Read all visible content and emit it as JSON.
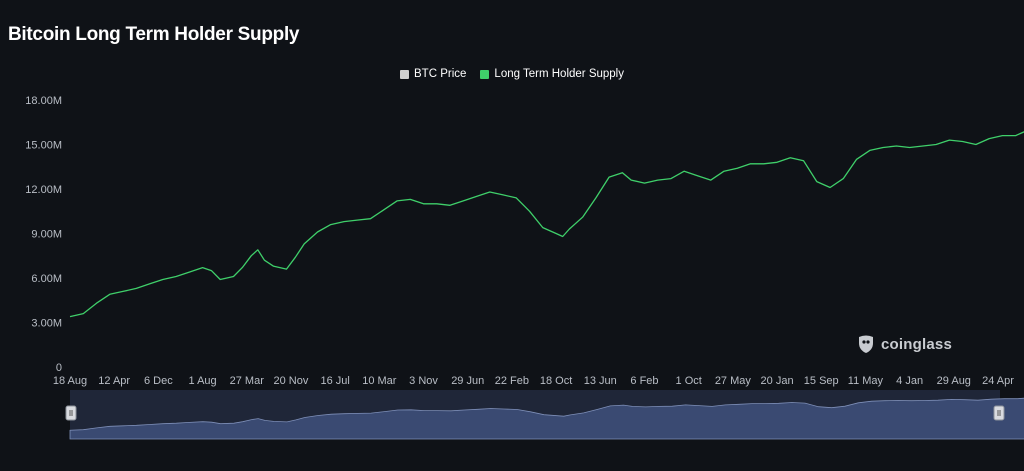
{
  "header": {
    "title": "Bitcoin Long Term Holder Supply"
  },
  "legend": {
    "items": [
      {
        "label": "BTC Price",
        "color": "#d0d0d0"
      },
      {
        "label": "Long Term Holder Supply",
        "color": "#3fcf6a"
      }
    ]
  },
  "watermark": {
    "text": "coinglass",
    "icon": "coinglass-logo-icon"
  },
  "navigator": {
    "left_handle_icon": "pause-handle-icon",
    "right_handle_icon": "pause-handle-icon"
  },
  "chart_data": {
    "type": "line",
    "title": "Bitcoin Long Term Holder Supply",
    "xlabel": "",
    "ylabel": "",
    "ylim": [
      0,
      18000000
    ],
    "y_ticks": [
      {
        "value": 0,
        "label": "0"
      },
      {
        "value": 3000000,
        "label": "3.00M"
      },
      {
        "value": 6000000,
        "label": "6.00M"
      },
      {
        "value": 9000000,
        "label": "9.00M"
      },
      {
        "value": 12000000,
        "label": "12.00M"
      },
      {
        "value": 15000000,
        "label": "15.00M"
      },
      {
        "value": 18000000,
        "label": "18.00M"
      }
    ],
    "x_ticks": [
      "18 Aug",
      "12 Apr",
      "6 Dec",
      "1 Aug",
      "27 Mar",
      "20 Nov",
      "16 Jul",
      "10 Mar",
      "3 Nov",
      "29 Jun",
      "22 Feb",
      "18 Oct",
      "13 Jun",
      "6 Feb",
      "1 Oct",
      "27 May",
      "20 Jan",
      "15 Sep",
      "11 May",
      "4 Jan",
      "29 Aug",
      "24 Apr"
    ],
    "grid": false,
    "legend_position": "top-center",
    "series": [
      {
        "name": "Long Term Holder Supply",
        "color": "#3fcf6a",
        "points": [
          [
            0,
            3400000
          ],
          [
            0.3,
            3600000
          ],
          [
            0.6,
            4300000
          ],
          [
            0.9,
            4900000
          ],
          [
            1.2,
            5100000
          ],
          [
            1.5,
            5300000
          ],
          [
            1.8,
            5600000
          ],
          [
            2.1,
            5900000
          ],
          [
            2.4,
            6100000
          ],
          [
            2.7,
            6400000
          ],
          [
            3.0,
            6700000
          ],
          [
            3.2,
            6500000
          ],
          [
            3.4,
            5900000
          ],
          [
            3.7,
            6100000
          ],
          [
            3.9,
            6700000
          ],
          [
            4.1,
            7500000
          ],
          [
            4.25,
            7900000
          ],
          [
            4.4,
            7200000
          ],
          [
            4.6,
            6800000
          ],
          [
            4.9,
            6600000
          ],
          [
            5.1,
            7400000
          ],
          [
            5.3,
            8300000
          ],
          [
            5.6,
            9100000
          ],
          [
            5.9,
            9600000
          ],
          [
            6.2,
            9800000
          ],
          [
            6.5,
            9900000
          ],
          [
            6.8,
            10000000
          ],
          [
            7.1,
            10600000
          ],
          [
            7.4,
            11200000
          ],
          [
            7.7,
            11300000
          ],
          [
            8.0,
            11000000
          ],
          [
            8.3,
            11000000
          ],
          [
            8.6,
            10900000
          ],
          [
            8.9,
            11200000
          ],
          [
            9.2,
            11500000
          ],
          [
            9.5,
            11800000
          ],
          [
            9.8,
            11600000
          ],
          [
            10.1,
            11400000
          ],
          [
            10.4,
            10500000
          ],
          [
            10.7,
            9400000
          ],
          [
            11.0,
            9000000
          ],
          [
            11.15,
            8800000
          ],
          [
            11.3,
            9300000
          ],
          [
            11.6,
            10100000
          ],
          [
            11.9,
            11400000
          ],
          [
            12.2,
            12800000
          ],
          [
            12.5,
            13100000
          ],
          [
            12.7,
            12600000
          ],
          [
            13.0,
            12400000
          ],
          [
            13.3,
            12600000
          ],
          [
            13.6,
            12700000
          ],
          [
            13.9,
            13200000
          ],
          [
            14.2,
            12900000
          ],
          [
            14.5,
            12600000
          ],
          [
            14.8,
            13200000
          ],
          [
            15.1,
            13400000
          ],
          [
            15.4,
            13700000
          ],
          [
            15.7,
            13700000
          ],
          [
            16.0,
            13800000
          ],
          [
            16.3,
            14100000
          ],
          [
            16.6,
            13900000
          ],
          [
            16.9,
            12500000
          ],
          [
            17.2,
            12100000
          ],
          [
            17.5,
            12700000
          ],
          [
            17.8,
            14000000
          ],
          [
            18.1,
            14600000
          ],
          [
            18.4,
            14800000
          ],
          [
            18.7,
            14900000
          ],
          [
            19.0,
            14800000
          ],
          [
            19.3,
            14900000
          ],
          [
            19.6,
            15000000
          ],
          [
            19.9,
            15300000
          ],
          [
            20.2,
            15200000
          ],
          [
            20.5,
            15000000
          ],
          [
            20.8,
            15400000
          ],
          [
            21.1,
            15600000
          ],
          [
            21.4,
            15600000
          ],
          [
            21.7,
            16000000
          ],
          [
            22.0,
            16200000
          ],
          [
            22.2,
            16300000
          ],
          [
            22.5,
            15600000
          ],
          [
            22.8,
            14900000
          ],
          [
            23.1,
            14800000
          ],
          [
            23.4,
            14900000
          ],
          [
            23.7,
            16100000
          ],
          [
            23.95,
            15900000
          ],
          [
            24.2,
            14800000
          ],
          [
            24.5,
            14500000
          ],
          [
            24.8,
            14600000
          ],
          [
            25.1,
            15300000
          ],
          [
            25.3,
            15600000
          ]
        ]
      }
    ]
  }
}
